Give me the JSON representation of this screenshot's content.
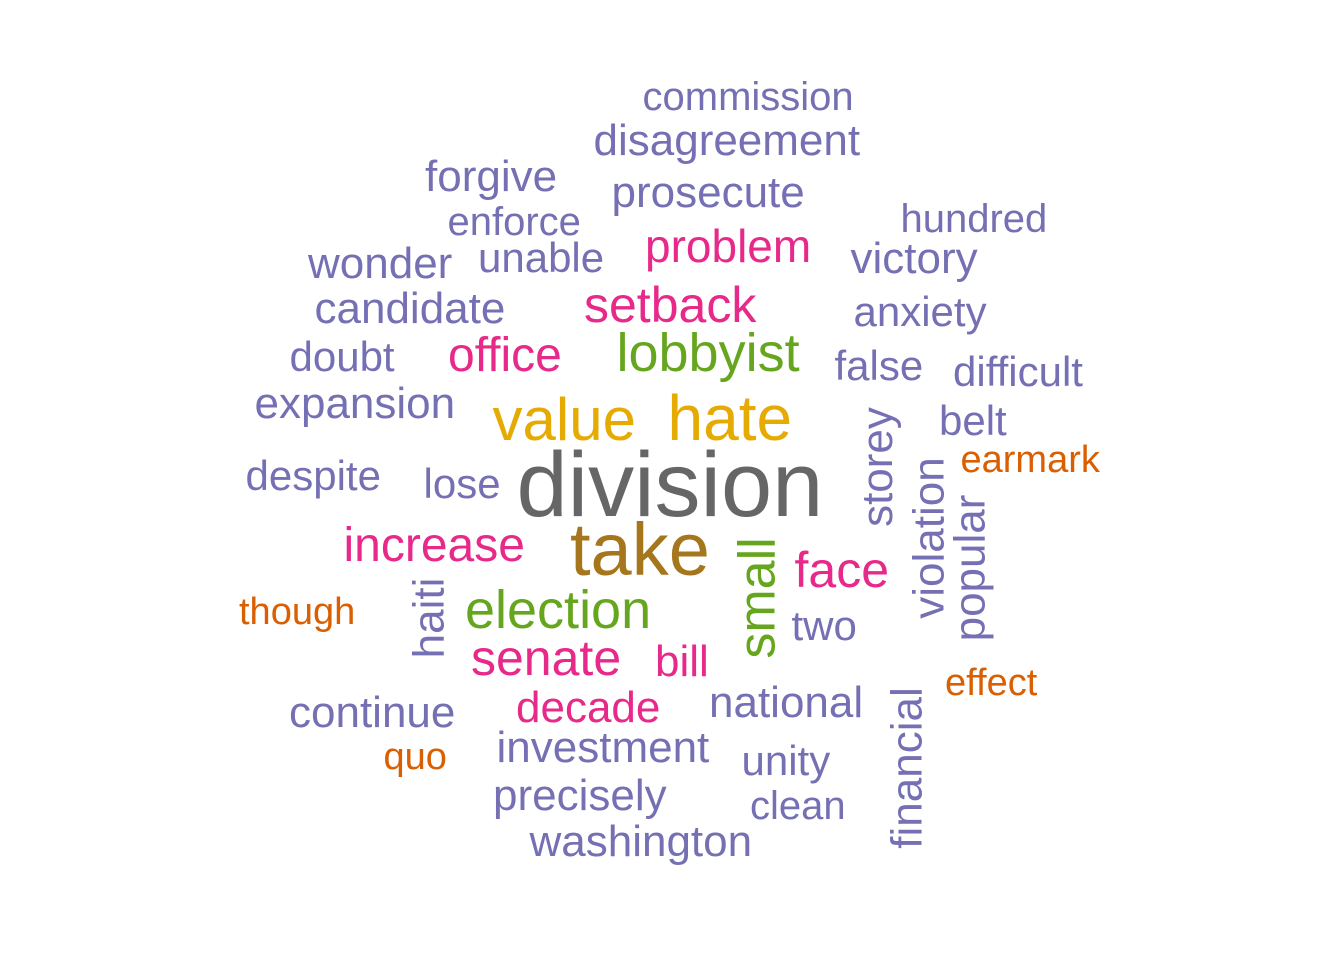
{
  "chart_data": {
    "type": "wordcloud",
    "title": "",
    "palette": {
      "purple": "#7570b3",
      "pink": "#e7298a",
      "green": "#66a61e",
      "gold": "#e6ab02",
      "brown": "#a6761d",
      "gray": "#666666",
      "orange": "#d95f02"
    },
    "words": [
      {
        "text": "division",
        "weight": 10,
        "color": "gray",
        "rotated": false
      },
      {
        "text": "take",
        "weight": 9,
        "color": "brown",
        "rotated": false
      },
      {
        "text": "hate",
        "weight": 8,
        "color": "gold",
        "rotated": false
      },
      {
        "text": "value",
        "weight": 8,
        "color": "gold",
        "rotated": false
      },
      {
        "text": "lobbyist",
        "weight": 7,
        "color": "green",
        "rotated": false
      },
      {
        "text": "election",
        "weight": 7,
        "color": "green",
        "rotated": false
      },
      {
        "text": "small",
        "weight": 7,
        "color": "green",
        "rotated": true
      },
      {
        "text": "setback",
        "weight": 6,
        "color": "pink",
        "rotated": false
      },
      {
        "text": "senate",
        "weight": 6,
        "color": "pink",
        "rotated": false
      },
      {
        "text": "face",
        "weight": 6,
        "color": "pink",
        "rotated": false
      },
      {
        "text": "increase",
        "weight": 6,
        "color": "pink",
        "rotated": false
      },
      {
        "text": "office",
        "weight": 6,
        "color": "pink",
        "rotated": false
      },
      {
        "text": "problem",
        "weight": 6,
        "color": "pink",
        "rotated": false
      },
      {
        "text": "decade",
        "weight": 5,
        "color": "pink",
        "rotated": false
      },
      {
        "text": "bill",
        "weight": 5,
        "color": "pink",
        "rotated": false
      },
      {
        "text": "disagreement",
        "weight": 4,
        "color": "purple",
        "rotated": false
      },
      {
        "text": "prosecute",
        "weight": 4,
        "color": "purple",
        "rotated": false
      },
      {
        "text": "commission",
        "weight": 4,
        "color": "purple",
        "rotated": false
      },
      {
        "text": "forgive",
        "weight": 4,
        "color": "purple",
        "rotated": false
      },
      {
        "text": "enforce",
        "weight": 4,
        "color": "purple",
        "rotated": false
      },
      {
        "text": "hundred",
        "weight": 4,
        "color": "purple",
        "rotated": false
      },
      {
        "text": "wonder",
        "weight": 4,
        "color": "purple",
        "rotated": false
      },
      {
        "text": "unable",
        "weight": 4,
        "color": "purple",
        "rotated": false
      },
      {
        "text": "victory",
        "weight": 4,
        "color": "purple",
        "rotated": false
      },
      {
        "text": "candidate",
        "weight": 4,
        "color": "purple",
        "rotated": false
      },
      {
        "text": "anxiety",
        "weight": 4,
        "color": "purple",
        "rotated": false
      },
      {
        "text": "doubt",
        "weight": 4,
        "color": "purple",
        "rotated": false
      },
      {
        "text": "false",
        "weight": 4,
        "color": "purple",
        "rotated": false
      },
      {
        "text": "difficult",
        "weight": 4,
        "color": "purple",
        "rotated": false
      },
      {
        "text": "expansion",
        "weight": 4,
        "color": "purple",
        "rotated": false
      },
      {
        "text": "belt",
        "weight": 4,
        "color": "purple",
        "rotated": false
      },
      {
        "text": "storey",
        "weight": 4,
        "color": "purple",
        "rotated": true
      },
      {
        "text": "despite",
        "weight": 4,
        "color": "purple",
        "rotated": false
      },
      {
        "text": "lose",
        "weight": 4,
        "color": "purple",
        "rotated": false
      },
      {
        "text": "violation",
        "weight": 4,
        "color": "purple",
        "rotated": true
      },
      {
        "text": "popular",
        "weight": 4,
        "color": "purple",
        "rotated": true
      },
      {
        "text": "haiti",
        "weight": 4,
        "color": "purple",
        "rotated": true
      },
      {
        "text": "two",
        "weight": 4,
        "color": "purple",
        "rotated": false
      },
      {
        "text": "national",
        "weight": 4,
        "color": "purple",
        "rotated": false
      },
      {
        "text": "continue",
        "weight": 4,
        "color": "purple",
        "rotated": false
      },
      {
        "text": "investment",
        "weight": 4,
        "color": "purple",
        "rotated": false
      },
      {
        "text": "unity",
        "weight": 4,
        "color": "purple",
        "rotated": false
      },
      {
        "text": "precisely",
        "weight": 4,
        "color": "purple",
        "rotated": false
      },
      {
        "text": "clean",
        "weight": 4,
        "color": "purple",
        "rotated": false
      },
      {
        "text": "washington",
        "weight": 4,
        "color": "purple",
        "rotated": false
      },
      {
        "text": "financial",
        "weight": 4,
        "color": "purple",
        "rotated": true
      },
      {
        "text": "earmark",
        "weight": 3,
        "color": "orange",
        "rotated": false
      },
      {
        "text": "though",
        "weight": 3,
        "color": "orange",
        "rotated": false
      },
      {
        "text": "effect",
        "weight": 3,
        "color": "orange",
        "rotated": false
      },
      {
        "text": "quo",
        "weight": 3,
        "color": "orange",
        "rotated": false
      }
    ]
  }
}
